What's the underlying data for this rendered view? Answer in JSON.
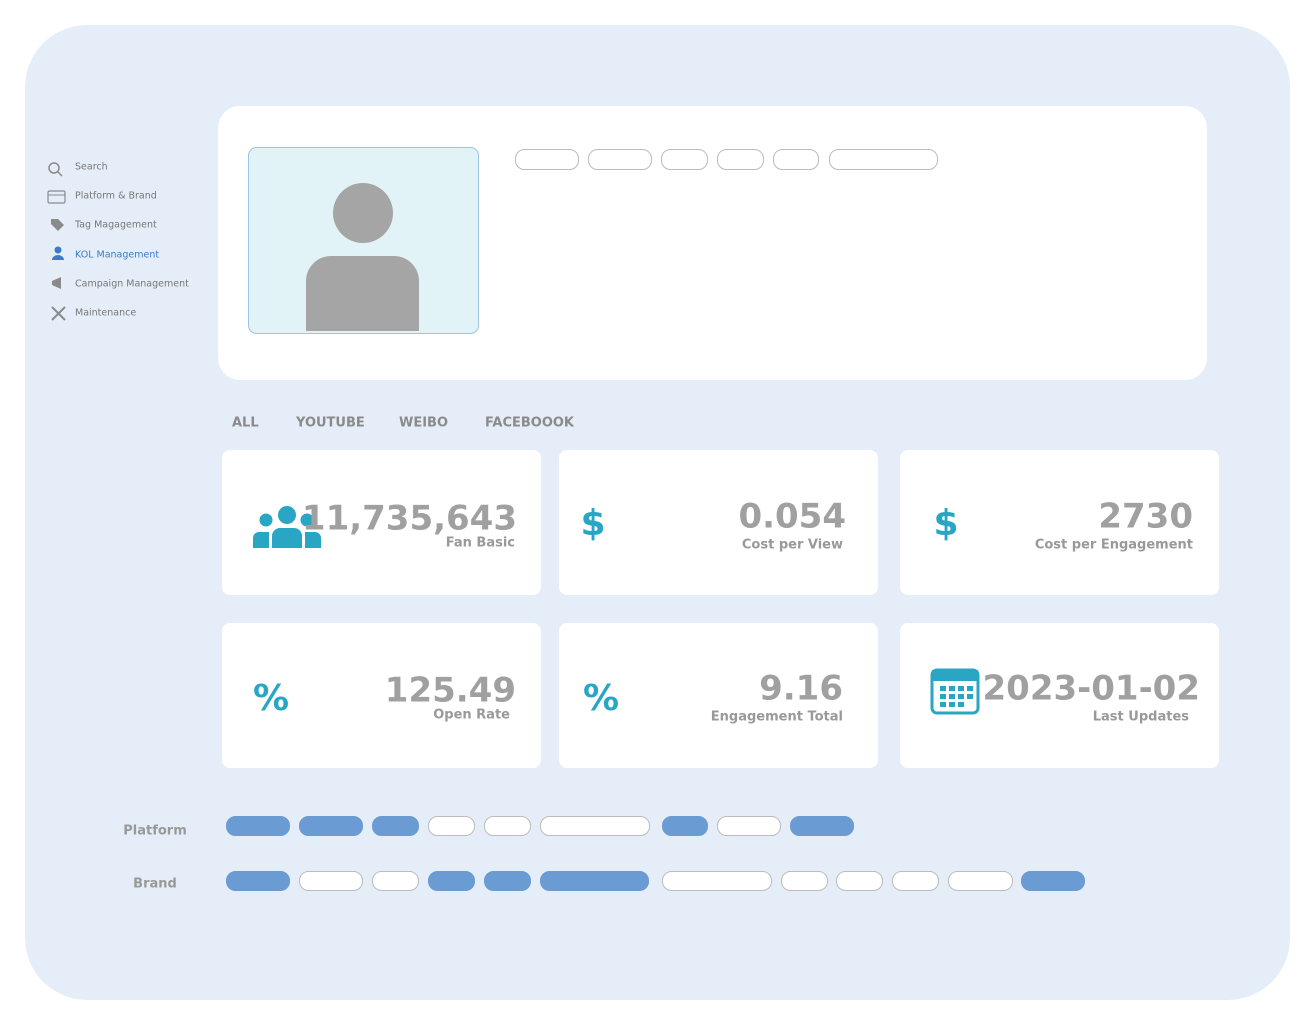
{
  "sidebar": {
    "items": [
      "Search",
      "Platform & Brand",
      "Tag Magagement",
      "KOL Management",
      "Campaign Management",
      "Maintenance"
    ],
    "active": 3
  },
  "tabs": [
    "ALL",
    "YOUTUBE",
    "WEIBO",
    "FACEBOOOK"
  ],
  "stats": [
    {
      "value": "11,735,643",
      "label": "Fan Basic"
    },
    {
      "value": "0.054",
      "label": "Cost per View"
    },
    {
      "value": "2730",
      "label": "Cost per Engagement"
    },
    {
      "value": "125.49",
      "label": "Open Rate"
    },
    {
      "value": "9.16",
      "label": "Engagement Total"
    },
    {
      "value": "2023-01-02",
      "label": "Last Updates"
    }
  ],
  "filters": [
    "Platform",
    "Brand"
  ]
}
